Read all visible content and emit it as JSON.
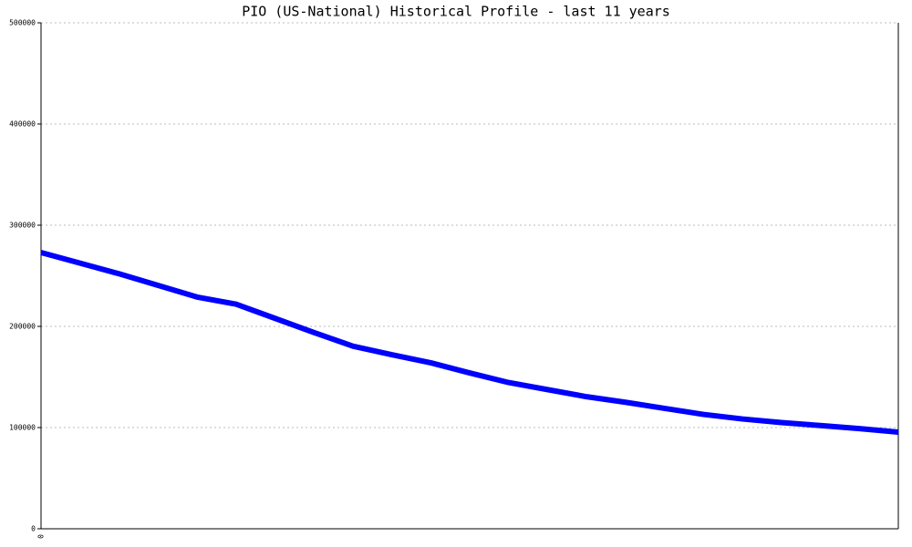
{
  "chart_data": {
    "type": "line",
    "title": "PIO (US-National) Historical Profile - last 11 years",
    "categories": [
      "0",
      null,
      null,
      null,
      null,
      null,
      null,
      null,
      null,
      null,
      null,
      null,
      null,
      null,
      null,
      null,
      null,
      null,
      null,
      null,
      null,
      null,
      null
    ],
    "series": [
      {
        "name": "PIO",
        "color": "#0000ff",
        "values": [
          273000,
          262500,
          252000,
          240500,
          229000,
          222000,
          208000,
          194000,
          180500,
          172000,
          164000,
          154000,
          144500,
          137500,
          130500,
          125000,
          119000,
          113000,
          108500,
          105000,
          102000,
          99000,
          95500
        ]
      }
    ],
    "ylim": [
      0,
      500000
    ],
    "yticks": [
      0,
      100000,
      200000,
      300000,
      400000,
      500000
    ],
    "grid": true
  }
}
